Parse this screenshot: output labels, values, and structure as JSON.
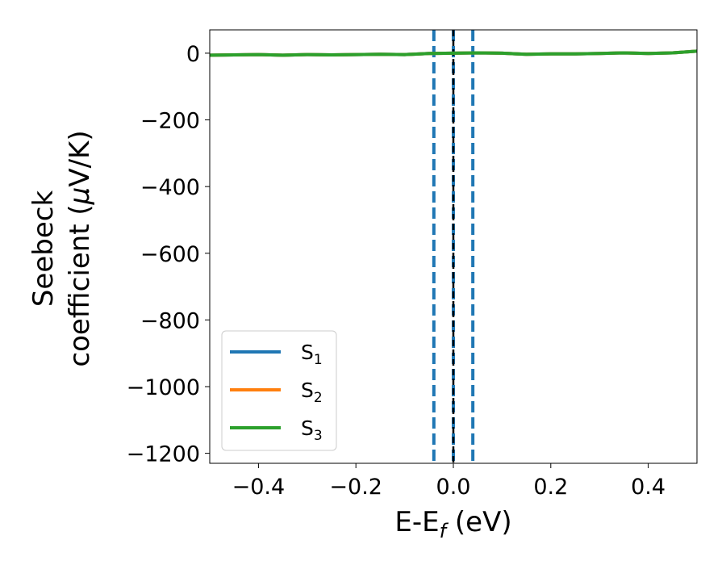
{
  "chart_data": {
    "type": "line",
    "xlabel_main": "E-E",
    "xlabel_sub": "f",
    "xlabel_unit": " (eV)",
    "ylabel_line1": "Seebeck",
    "ylabel_line2": "coefficient  (",
    "ylabel_mu": "μ",
    "ylabel_unit": "V/K)",
    "xlim": [
      -0.5,
      0.5
    ],
    "ylim": [
      -1230,
      70
    ],
    "x_ticks": [
      -0.4,
      -0.2,
      0.0,
      0.2,
      0.4
    ],
    "x_tick_labels": [
      "−0.4",
      "−0.2",
      "0.0",
      "0.2",
      "0.4"
    ],
    "y_ticks": [
      0,
      -200,
      -400,
      -600,
      -800,
      -1000,
      -1200
    ],
    "y_tick_labels": [
      "0",
      "−200",
      "−400",
      "−600",
      "−800",
      "−1000",
      "−1200"
    ],
    "grid": false,
    "legend_position": "lower-left",
    "series": [
      {
        "name": "S",
        "sub": "1",
        "color": "#1f77b4",
        "x": [
          -0.5,
          -0.45,
          -0.4,
          -0.35,
          -0.3,
          -0.25,
          -0.2,
          -0.15,
          -0.1,
          -0.05,
          0.0,
          0.05,
          0.1,
          0.15,
          0.2,
          0.25,
          0.3,
          0.35,
          0.4,
          0.45,
          0.5
        ],
        "y": [
          -6,
          -5,
          -4,
          -6,
          -4,
          -5,
          -4,
          -3,
          -4,
          -1,
          0,
          1,
          0,
          -3,
          -2,
          -2,
          -1,
          1,
          -1,
          1,
          6
        ]
      },
      {
        "name": "S",
        "sub": "2",
        "color": "#ff7f0e",
        "x": [
          -0.5,
          -0.45,
          -0.4,
          -0.35,
          -0.3,
          -0.25,
          -0.2,
          -0.15,
          -0.1,
          -0.05,
          0.0,
          0.05,
          0.1,
          0.15,
          0.2,
          0.25,
          0.3,
          0.35,
          0.4,
          0.45,
          0.5
        ],
        "y": [
          -6,
          -5,
          -4,
          -6,
          -4,
          -5,
          -4,
          -3,
          -4,
          -1,
          0,
          1,
          0,
          -3,
          -2,
          -2,
          -1,
          1,
          -1,
          1,
          6
        ]
      },
      {
        "name": "S",
        "sub": "3",
        "color": "#2ca02c",
        "x": [
          -0.5,
          -0.45,
          -0.4,
          -0.35,
          -0.3,
          -0.25,
          -0.2,
          -0.15,
          -0.1,
          -0.05,
          0.0,
          0.05,
          0.1,
          0.15,
          0.2,
          0.25,
          0.3,
          0.35,
          0.4,
          0.45,
          0.5
        ],
        "y": [
          -6,
          -5,
          -4,
          -6,
          -4,
          -5,
          -4,
          -3,
          -4,
          -1,
          0,
          1,
          0,
          -3,
          -2,
          -2,
          -1,
          1,
          -1,
          1,
          6
        ]
      }
    ],
    "vertical_lines": [
      {
        "x": -0.04,
        "color": "#1f77b4",
        "style": "dashed"
      },
      {
        "x": 0.04,
        "color": "#1f77b4",
        "style": "dashed"
      },
      {
        "x": 0.0,
        "color": "#1f77b4",
        "style": "dashed"
      },
      {
        "x": 0.0,
        "color": "#000000",
        "style": "dashed"
      }
    ]
  }
}
